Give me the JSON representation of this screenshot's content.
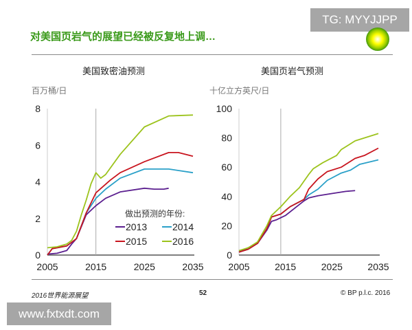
{
  "title": "对美国页岩气的展望已经被反复地上调…",
  "watermark_top": "TG: MYYJJPP",
  "watermark_bottom": "www.fxtxdt.com",
  "footer": {
    "left": "2016世界能源展望",
    "page": "52",
    "right": "© BP p.l.c. 2016"
  },
  "logo": "bp-helios-logo",
  "legend_title": "做出预测的年份:",
  "colors": {
    "2013": "#5b1f8f",
    "2014": "#2aa0c8",
    "2015": "#c8141e",
    "2016": "#9cc31c",
    "title": "#3a9a1a"
  },
  "chart_data": [
    {
      "type": "line",
      "title": "美国致密油预测",
      "ylabel": "百万桶/日",
      "xlim": [
        2005,
        2035
      ],
      "ylim": [
        0,
        8
      ],
      "xticks": [
        2005,
        2015,
        2025,
        2035
      ],
      "yticks": [
        0,
        2,
        4,
        6,
        8
      ],
      "reference_line_x": 2015,
      "legend": "bottom-right",
      "series": [
        {
          "name": "2013",
          "points": [
            [
              2005,
              0.05
            ],
            [
              2007,
              0.1
            ],
            [
              2009,
              0.25
            ],
            [
              2010,
              0.6
            ],
            [
              2011,
              0.9
            ],
            [
              2013,
              2.2
            ],
            [
              2015,
              2.7
            ],
            [
              2017,
              3.1
            ],
            [
              2020,
              3.45
            ],
            [
              2025,
              3.65
            ],
            [
              2027,
              3.6
            ],
            [
              2029,
              3.6
            ],
            [
              2030,
              3.65
            ]
          ]
        },
        {
          "name": "2014",
          "points": [
            [
              2005,
              0
            ],
            [
              2006,
              0.35
            ],
            [
              2009,
              0.5
            ],
            [
              2011,
              0.9
            ],
            [
              2013,
              2.3
            ],
            [
              2015,
              3.1
            ],
            [
              2017,
              3.6
            ],
            [
              2020,
              4.2
            ],
            [
              2025,
              4.7
            ],
            [
              2030,
              4.7
            ],
            [
              2035,
              4.5
            ]
          ]
        },
        {
          "name": "2015",
          "points": [
            [
              2005,
              0
            ],
            [
              2006,
              0.35
            ],
            [
              2009,
              0.5
            ],
            [
              2011,
              0.9
            ],
            [
              2013,
              2.3
            ],
            [
              2015,
              3.4
            ],
            [
              2018,
              4.1
            ],
            [
              2020,
              4.5
            ],
            [
              2025,
              5.1
            ],
            [
              2030,
              5.6
            ],
            [
              2032,
              5.6
            ],
            [
              2035,
              5.4
            ]
          ]
        },
        {
          "name": "2016",
          "points": [
            [
              2005,
              0.4
            ],
            [
              2007,
              0.45
            ],
            [
              2009,
              0.6
            ],
            [
              2010,
              0.8
            ],
            [
              2011,
              1.3
            ],
            [
              2012,
              2.2
            ],
            [
              2013,
              3.0
            ],
            [
              2014,
              3.9
            ],
            [
              2015,
              4.5
            ],
            [
              2016,
              4.2
            ],
            [
              2017,
              4.4
            ],
            [
              2020,
              5.5
            ],
            [
              2025,
              7.0
            ],
            [
              2030,
              7.6
            ],
            [
              2035,
              7.65
            ]
          ]
        }
      ]
    },
    {
      "type": "line",
      "title": "美国页岩气预测",
      "ylabel": "十亿立方英尺/日",
      "xlim": [
        2005,
        2035
      ],
      "ylim": [
        0,
        100
      ],
      "xticks": [
        2005,
        2015,
        2025,
        2035
      ],
      "yticks": [
        0,
        20,
        40,
        60,
        80,
        100
      ],
      "reference_line_x": 2014,
      "series": [
        {
          "name": "2013",
          "points": [
            [
              2005,
              2
            ],
            [
              2009,
              8
            ],
            [
              2011,
              17
            ],
            [
              2012,
              23
            ],
            [
              2013,
              24
            ],
            [
              2015,
              27
            ],
            [
              2017,
              32
            ],
            [
              2019,
              37
            ],
            [
              2020,
              39
            ],
            [
              2022,
              40.5
            ],
            [
              2025,
              42
            ],
            [
              2028,
              43.5
            ],
            [
              2030,
              44
            ]
          ]
        },
        {
          "name": "2014",
          "points": [
            [
              2005,
              2
            ],
            [
              2007,
              4
            ],
            [
              2009,
              8
            ],
            [
              2011,
              18
            ],
            [
              2012,
              26
            ],
            [
              2014,
              28
            ],
            [
              2016,
              33
            ],
            [
              2019,
              38
            ],
            [
              2020,
              41
            ],
            [
              2022,
              45
            ],
            [
              2024,
              51
            ],
            [
              2027,
              56
            ],
            [
              2029,
              58
            ],
            [
              2031,
              62
            ],
            [
              2035,
              65
            ]
          ]
        },
        {
          "name": "2015",
          "points": [
            [
              2005,
              2
            ],
            [
              2007,
              4
            ],
            [
              2009,
              8
            ],
            [
              2011,
              18
            ],
            [
              2012,
              26
            ],
            [
              2014,
              28
            ],
            [
              2016,
              33
            ],
            [
              2019,
              38
            ],
            [
              2020,
              45
            ],
            [
              2022,
              52
            ],
            [
              2024,
              57
            ],
            [
              2027,
              60
            ],
            [
              2030,
              66
            ],
            [
              2032,
              68
            ],
            [
              2035,
              73
            ]
          ]
        },
        {
          "name": "2016",
          "points": [
            [
              2005,
              3
            ],
            [
              2007,
              5
            ],
            [
              2009,
              9
            ],
            [
              2011,
              20
            ],
            [
              2012,
              27
            ],
            [
              2014,
              33
            ],
            [
              2016,
              40
            ],
            [
              2018,
              46
            ],
            [
              2020,
              55
            ],
            [
              2021,
              59
            ],
            [
              2023,
              63
            ],
            [
              2026,
              68
            ],
            [
              2027,
              72
            ],
            [
              2030,
              78
            ],
            [
              2032,
              80
            ],
            [
              2035,
              83
            ]
          ]
        }
      ]
    }
  ]
}
